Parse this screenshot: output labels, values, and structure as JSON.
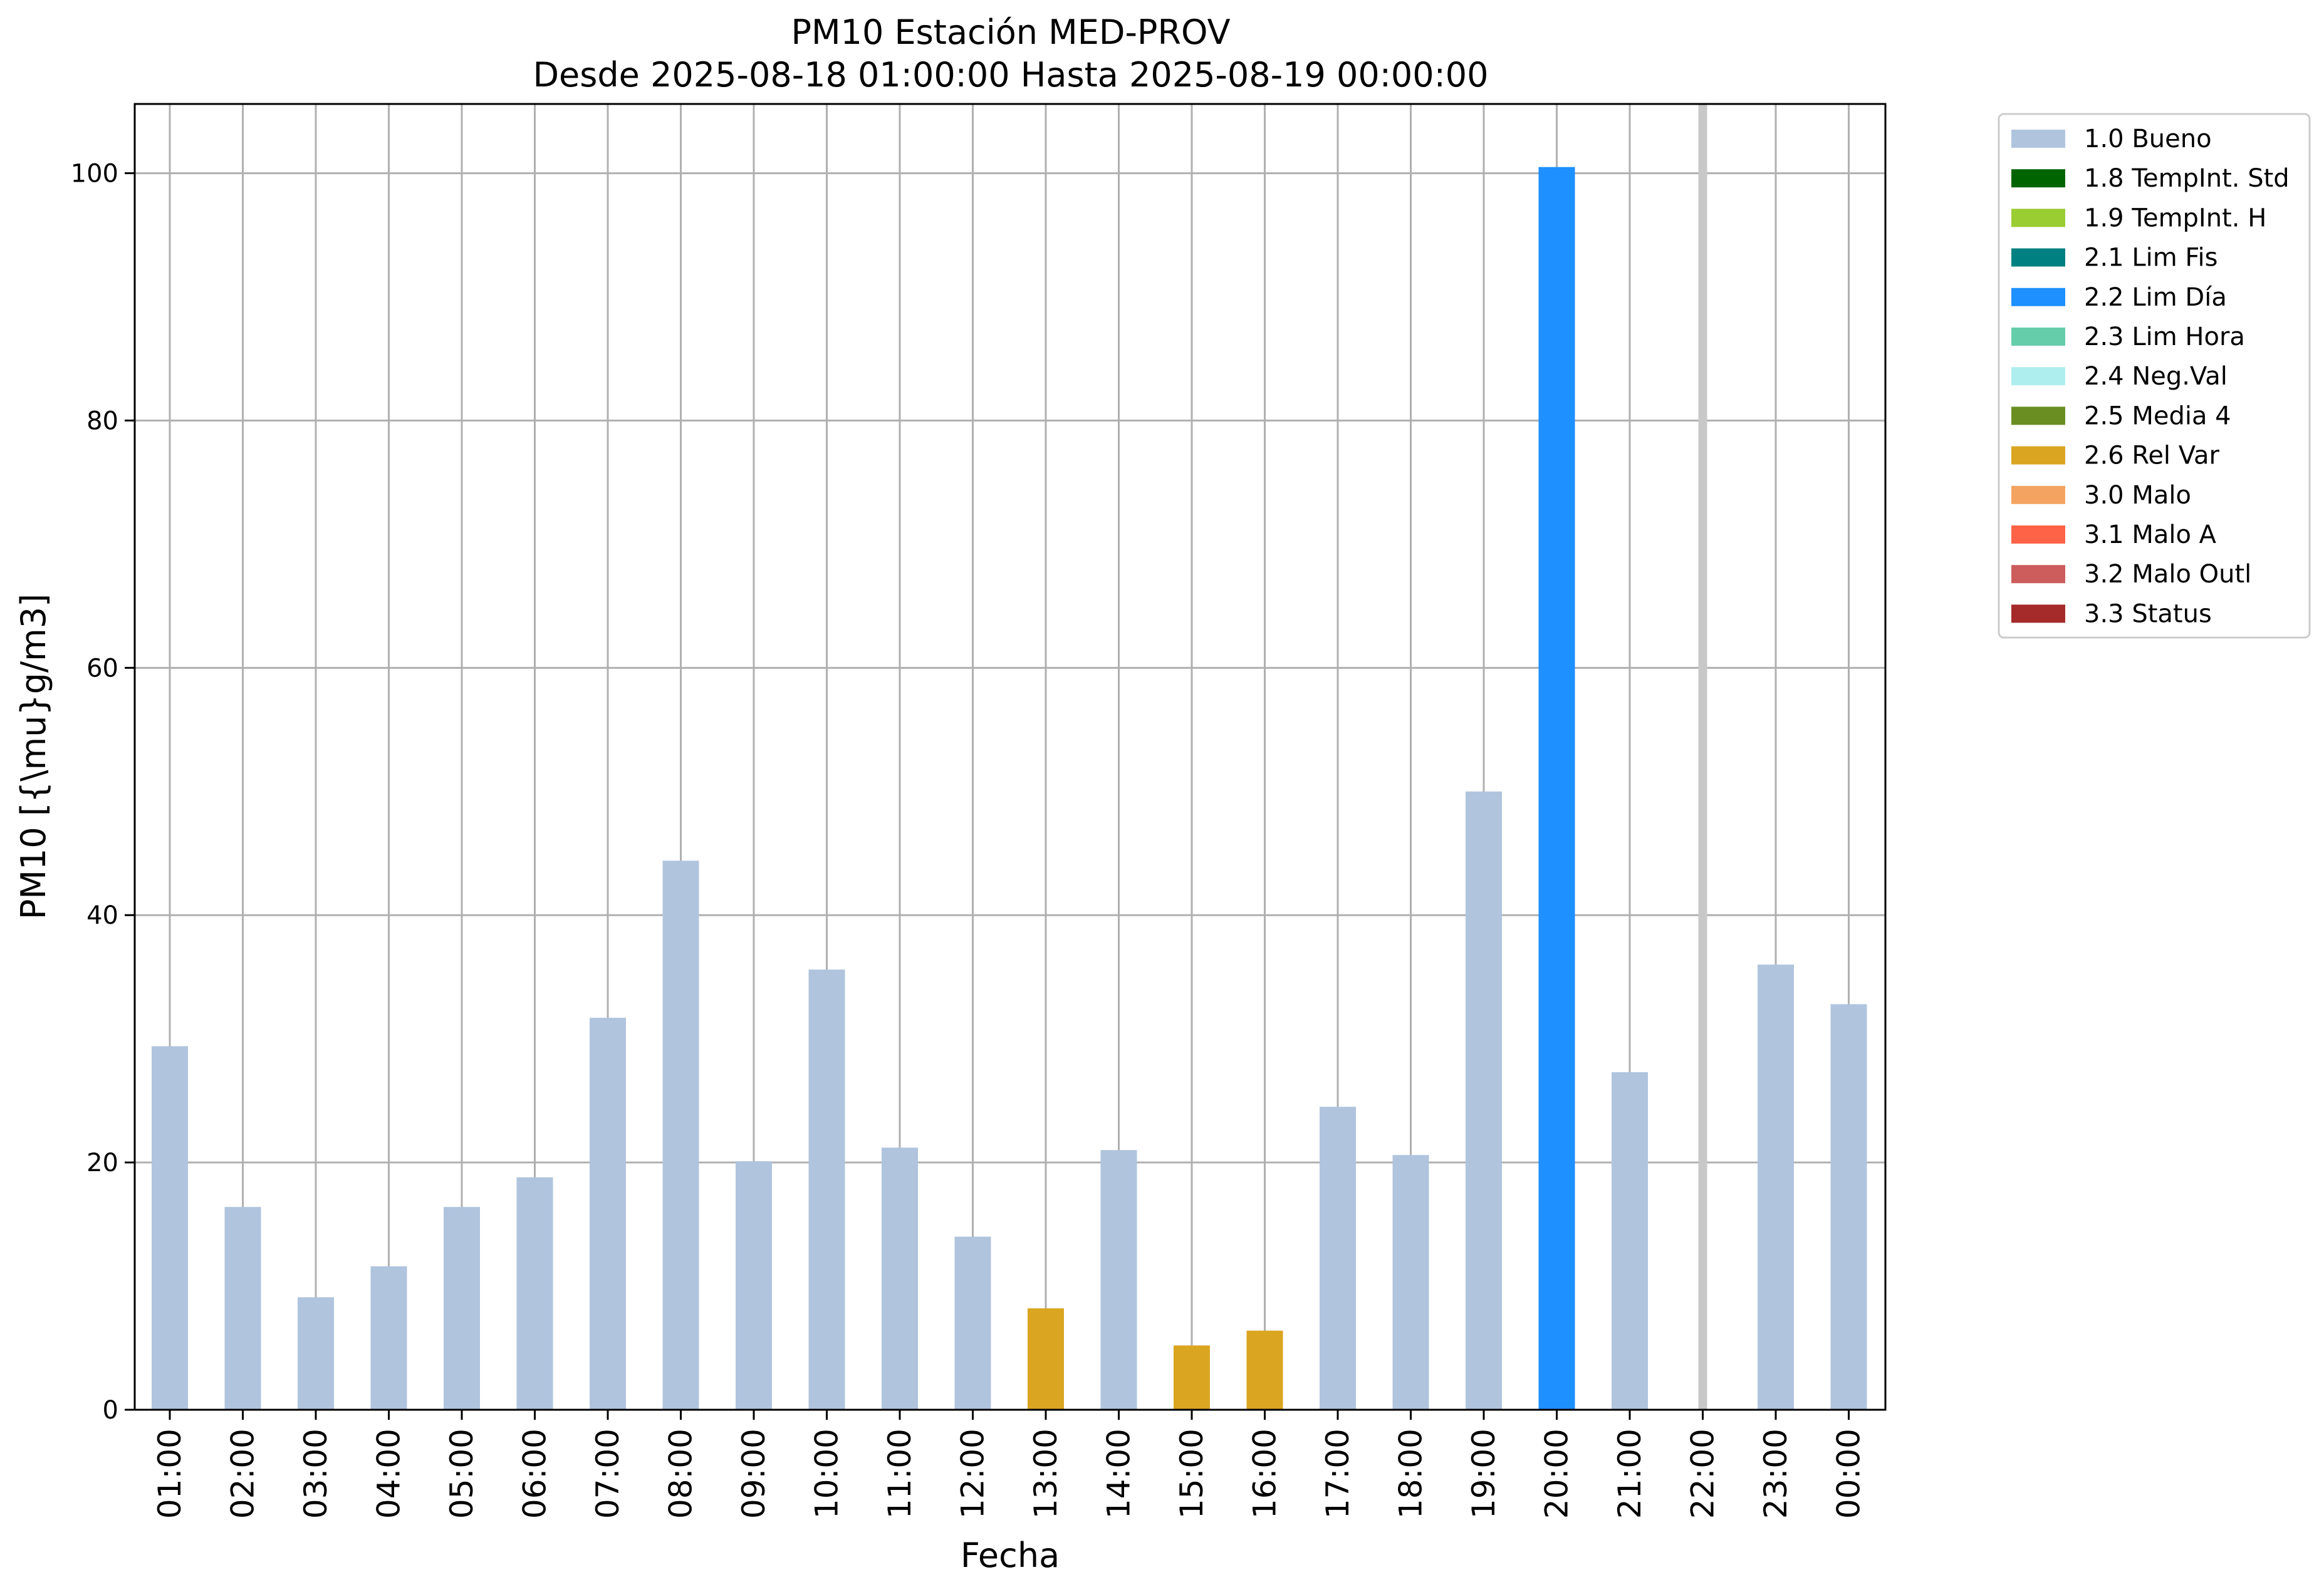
{
  "chart_data": {
    "type": "bar",
    "title": "PM10 Estación MED-PROV",
    "subtitle": "Desde 2025-08-18 01:00:00 Hasta 2025-08-19 00:00:00",
    "xlabel": "Fecha",
    "ylabel": "PM10 [{\\mu}g/m3]",
    "ylim": [
      0,
      105.6
    ],
    "yticks": [
      0,
      20,
      40,
      60,
      80,
      100
    ],
    "grid": true,
    "legend_position": "outside-top-right",
    "categories": [
      "01:00",
      "02:00",
      "03:00",
      "04:00",
      "05:00",
      "06:00",
      "07:00",
      "08:00",
      "09:00",
      "10:00",
      "11:00",
      "12:00",
      "13:00",
      "14:00",
      "15:00",
      "16:00",
      "17:00",
      "18:00",
      "19:00",
      "20:00",
      "21:00",
      "22:00",
      "23:00",
      "00:00"
    ],
    "values": [
      29.4,
      16.4,
      9.1,
      11.6,
      16.4,
      18.8,
      31.7,
      44.4,
      20.1,
      35.6,
      21.2,
      14.0,
      8.2,
      21.0,
      5.2,
      6.4,
      24.5,
      20.6,
      50.0,
      100.5,
      27.3,
      null,
      36.0,
      32.8
    ],
    "flags": [
      "1.0 Bueno",
      "1.0 Bueno",
      "1.0 Bueno",
      "1.0 Bueno",
      "1.0 Bueno",
      "1.0 Bueno",
      "1.0 Bueno",
      "1.0 Bueno",
      "1.0 Bueno",
      "1.0 Bueno",
      "1.0 Bueno",
      "1.0 Bueno",
      "2.6 Rel Var",
      "1.0 Bueno",
      "2.6 Rel Var",
      "2.6 Rel Var",
      "1.0 Bueno",
      "1.0 Bueno",
      "1.0 Bueno",
      "2.2 Lim Día",
      "1.0 Bueno",
      null,
      "1.0 Bueno",
      "1.0 Bueno"
    ],
    "missing_marker": {
      "category": "22:00",
      "color": "#c8c8c8"
    },
    "legend": [
      {
        "label": "1.0 Bueno",
        "color": "#b0c4de"
      },
      {
        "label": "1.8 TempInt. Std",
        "color": "#006400"
      },
      {
        "label": "1.9 TempInt. H",
        "color": "#9acd32"
      },
      {
        "label": "2.1 Lim Fis",
        "color": "#008080"
      },
      {
        "label": "2.2 Lim Día",
        "color": "#1e90ff"
      },
      {
        "label": "2.3 Lim Hora",
        "color": "#66cdaa"
      },
      {
        "label": "2.4 Neg.Val",
        "color": "#afeeee"
      },
      {
        "label": "2.5 Media 4",
        "color": "#6b8e23"
      },
      {
        "label": "2.6 Rel Var",
        "color": "#daa520"
      },
      {
        "label": "3.0 Malo",
        "color": "#f4a460"
      },
      {
        "label": "3.1 Malo A",
        "color": "#ff6347"
      },
      {
        "label": "3.2 Malo Outl",
        "color": "#cd5c5c"
      },
      {
        "label": "3.3 Status",
        "color": "#a52a2a"
      }
    ]
  }
}
